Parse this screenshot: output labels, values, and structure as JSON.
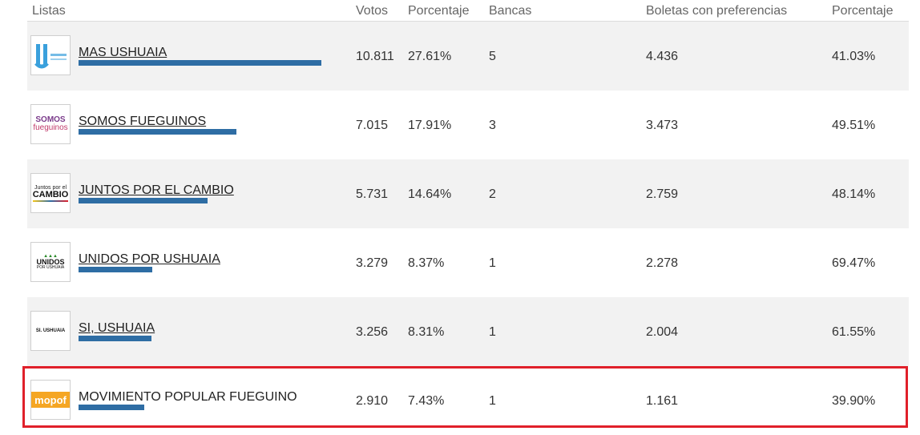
{
  "headers": {
    "listas": "Listas",
    "votos": "Votos",
    "porcentaje": "Porcentaje",
    "bancas": "Bancas",
    "boletas": "Boletas con preferencias",
    "porcentaje2": "Porcentaje"
  },
  "rows": [
    {
      "name": "MAS USHUAIA",
      "votos": "10.811",
      "pct": "27.61%",
      "bancas": "5",
      "boletas": "4.436",
      "pct2": "41.03%",
      "bar_fraction": 1.0
    },
    {
      "name": "SOMOS FUEGUINOS",
      "votos": "7.015",
      "pct": "17.91%",
      "bancas": "3",
      "boletas": "3.473",
      "pct2": "49.51%",
      "bar_fraction": 0.649,
      "logo_top": "SOMOS",
      "logo_bottom": "fueguinos"
    },
    {
      "name": "JUNTOS POR EL CAMBIO",
      "votos": "5.731",
      "pct": "14.64%",
      "bancas": "2",
      "boletas": "2.759",
      "pct2": "48.14%",
      "bar_fraction": 0.53,
      "logo_top": "Juntos por el",
      "logo_bottom": "CAMBIO"
    },
    {
      "name": "UNIDOS POR USHUAIA",
      "votos": "3.279",
      "pct": "8.37%",
      "bancas": "1",
      "boletas": "2.278",
      "pct2": "69.47%",
      "bar_fraction": 0.303,
      "logo_top": "UNIDOS",
      "logo_bottom": "POR USHUAIA"
    },
    {
      "name": "SI, USHUAIA",
      "votos": "3.256",
      "pct": "8.31%",
      "bancas": "1",
      "boletas": "2.004",
      "pct2": "61.55%",
      "bar_fraction": 0.301,
      "logo_top": "SI. USHUAIA"
    },
    {
      "name": "MOVIMIENTO POPULAR FUEGUINO",
      "votos": "2.910",
      "pct": "7.43%",
      "bancas": "1",
      "boletas": "1.161",
      "pct2": "39.90%",
      "bar_fraction": 0.269,
      "logo_top": "mopof"
    }
  ],
  "colors": {
    "bar": "#2e6da4",
    "highlight": "#e0202a",
    "mopof": "#f5a623"
  }
}
